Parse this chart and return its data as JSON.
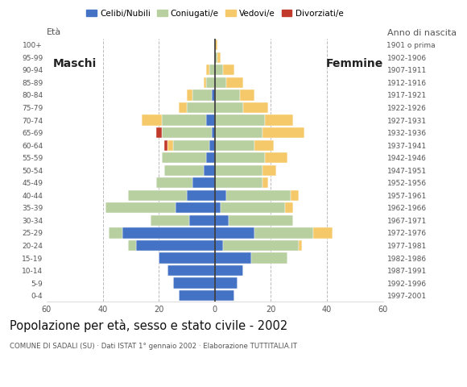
{
  "age_groups": [
    "0-4",
    "5-9",
    "10-14",
    "15-19",
    "20-24",
    "25-29",
    "30-34",
    "35-39",
    "40-44",
    "45-49",
    "50-54",
    "55-59",
    "60-64",
    "65-69",
    "70-74",
    "75-79",
    "80-84",
    "85-89",
    "90-94",
    "95-99",
    "100+"
  ],
  "birth_years": [
    "1997-2001",
    "1992-1996",
    "1987-1991",
    "1982-1986",
    "1977-1981",
    "1972-1976",
    "1967-1971",
    "1962-1966",
    "1957-1961",
    "1952-1956",
    "1947-1951",
    "1942-1946",
    "1937-1941",
    "1932-1936",
    "1927-1931",
    "1922-1926",
    "1917-1921",
    "1912-1916",
    "1907-1911",
    "1902-1906",
    "1901 o prima"
  ],
  "males": {
    "celibe": [
      13,
      15,
      17,
      20,
      28,
      33,
      9,
      14,
      10,
      8,
      4,
      3,
      2,
      1,
      3,
      0,
      1,
      0,
      0,
      0,
      0
    ],
    "coniugato": [
      0,
      0,
      0,
      0,
      3,
      5,
      14,
      25,
      21,
      13,
      14,
      16,
      13,
      18,
      16,
      10,
      7,
      3,
      2,
      0,
      0
    ],
    "vedovo": [
      0,
      0,
      0,
      0,
      0,
      0,
      0,
      0,
      0,
      0,
      0,
      0,
      2,
      0,
      7,
      3,
      2,
      1,
      1,
      0,
      0
    ],
    "divorziato": [
      0,
      0,
      0,
      0,
      0,
      0,
      0,
      0,
      0,
      0,
      0,
      0,
      1,
      2,
      0,
      0,
      0,
      0,
      0,
      0,
      0
    ]
  },
  "females": {
    "nubile": [
      7,
      8,
      10,
      13,
      3,
      14,
      5,
      2,
      4,
      0,
      0,
      0,
      0,
      0,
      0,
      0,
      0,
      0,
      0,
      0,
      0
    ],
    "coniugata": [
      0,
      0,
      0,
      13,
      27,
      21,
      23,
      23,
      23,
      17,
      17,
      18,
      14,
      17,
      18,
      10,
      9,
      4,
      3,
      1,
      0
    ],
    "vedova": [
      0,
      0,
      0,
      0,
      1,
      7,
      0,
      3,
      3,
      2,
      5,
      8,
      7,
      15,
      10,
      9,
      5,
      6,
      4,
      1,
      1
    ],
    "divorziata": [
      0,
      0,
      0,
      0,
      0,
      0,
      0,
      0,
      0,
      0,
      0,
      0,
      0,
      0,
      0,
      0,
      0,
      0,
      0,
      0,
      0
    ]
  },
  "colors": {
    "celibe_nubile": "#4472c4",
    "coniugato_a": "#b8cfa0",
    "vedovo_a": "#f5c96a",
    "divorziato_a": "#c0392b"
  },
  "title": "Popolazione per età, sesso e stato civile - 2002",
  "subtitle": "COMUNE DI SADALI (SU) · Dati ISTAT 1° gennaio 2002 · Elaborazione TUTTITALIA.IT",
  "label_maschi": "Maschi",
  "label_femmine": "Femmine",
  "ylabel_left": "Età",
  "ylabel_right": "Anno di nascita",
  "xlim": 60,
  "legend_labels": [
    "Celibi/Nubili",
    "Coniugati/e",
    "Vedovi/e",
    "Divorziati/e"
  ],
  "background_color": "#ffffff",
  "grid_color": "#bbbbbb",
  "center_line_color": "#333333"
}
